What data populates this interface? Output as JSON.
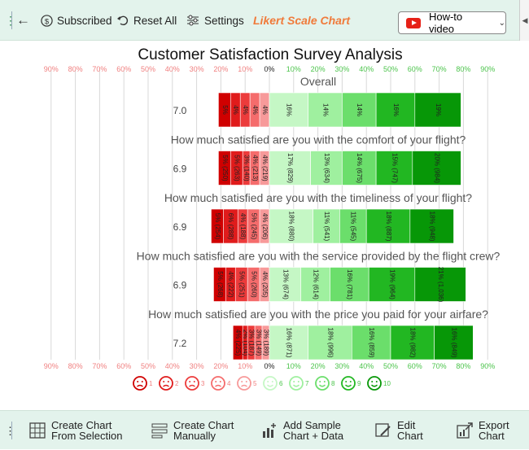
{
  "toolbar": {
    "subscribed_label": "Subscribed",
    "reset_label": "Reset All",
    "settings_label": "Settings",
    "brand_label": "Likert Scale Chart",
    "howto_label": "How-to video"
  },
  "bottombar": {
    "create_selection_line1": "Create Chart",
    "create_selection_line2": "From Selection",
    "create_manual_line1": "Create Chart",
    "create_manual_line2": "Manually",
    "add_sample_line1": "Add Sample",
    "add_sample_line2": "Chart + Data",
    "edit_line1": "Edit",
    "edit_line2": "Chart",
    "export_line1": "Export",
    "export_line2": "Chart"
  },
  "colors": {
    "neg": [
      "#d00000",
      "#e01b1b",
      "#ec3b3b",
      "#f56c6c",
      "#f79a9a"
    ],
    "pos": [
      "#c5f7c5",
      "#9ff09f",
      "#6bde6b",
      "#22b722",
      "#079707"
    ],
    "neg_axis": "#f08080",
    "pos_axis": "#4cc44c"
  },
  "chart_data": {
    "type": "bar",
    "subtype": "diverging-stacked-likert",
    "title": "Customer Satisfaction Survey Analysis",
    "axis_ticks": [
      "90%",
      "80%",
      "70%",
      "60%",
      "50%",
      "40%",
      "30%",
      "20%",
      "10%",
      "0%",
      "10%",
      "20%",
      "30%",
      "40%",
      "50%",
      "60%",
      "70%",
      "80%",
      "90%"
    ],
    "xlim": [
      -90,
      90
    ],
    "scale_labels": [
      "1",
      "2",
      "3",
      "4",
      "5",
      "6",
      "7",
      "8",
      "9",
      "10"
    ],
    "questions": [
      {
        "label": "Overall",
        "score": "7.0",
        "values": [
          5,
          4,
          4,
          4,
          4,
          16,
          14,
          14,
          16,
          19
        ],
        "labels": [
          "5%",
          "4%",
          "4%",
          "4%",
          "4%",
          "16%",
          "14%",
          "14%",
          "16%",
          "19%"
        ]
      },
      {
        "label": "How much satisfied are you with the comfort of your flight?",
        "score": "6.9",
        "values": [
          5,
          5,
          3,
          4,
          4,
          17,
          13,
          14,
          15,
          20
        ],
        "labels": [
          "5% (250)",
          "5% (263)",
          "3% (140)",
          "4% (213)",
          "4% (219)",
          "17% (829)",
          "13% (634)",
          "14% (675)",
          "15% (747)",
          "20% (984)"
        ]
      },
      {
        "label": "How much satisfied are you with the timeliness of your flight?",
        "score": "6.9",
        "values": [
          5,
          6,
          4,
          5,
          4,
          18,
          11,
          11,
          18,
          18
        ],
        "labels": [
          "5% (254)",
          "6% (288)",
          "4% (188)",
          "5% (245)",
          "4% (206)",
          "18% (880)",
          "11% (541)",
          "11% (545)",
          "18% (887)",
          "18% (948)"
        ]
      },
      {
        "label": "How much satisfied are you with the service provided by the flight crew?",
        "score": "6.9",
        "values": [
          5,
          4,
          5,
          5,
          4,
          13,
          12,
          16,
          19,
          21
        ],
        "labels": [
          "5% (268)",
          "4% (222)",
          "5% (251)",
          "5% (260)",
          "4% (205)",
          "13% (674)",
          "12% (614)",
          "16% (781)",
          "19% (964)",
          "21% (1,036)"
        ]
      },
      {
        "label": "How much satisfied are you with the price you paid for your airfare?",
        "score": "7.2",
        "values": [
          4,
          2,
          3,
          3,
          3,
          16,
          18,
          16,
          18,
          16
        ],
        "labels": [
          "4% (225)",
          "2% (104)",
          "3% (187)",
          "3% (149)",
          "3% (189)",
          "16% (871)",
          "18% (996)",
          "16% (859)",
          "18% (982)",
          "16% (849)"
        ]
      }
    ]
  }
}
